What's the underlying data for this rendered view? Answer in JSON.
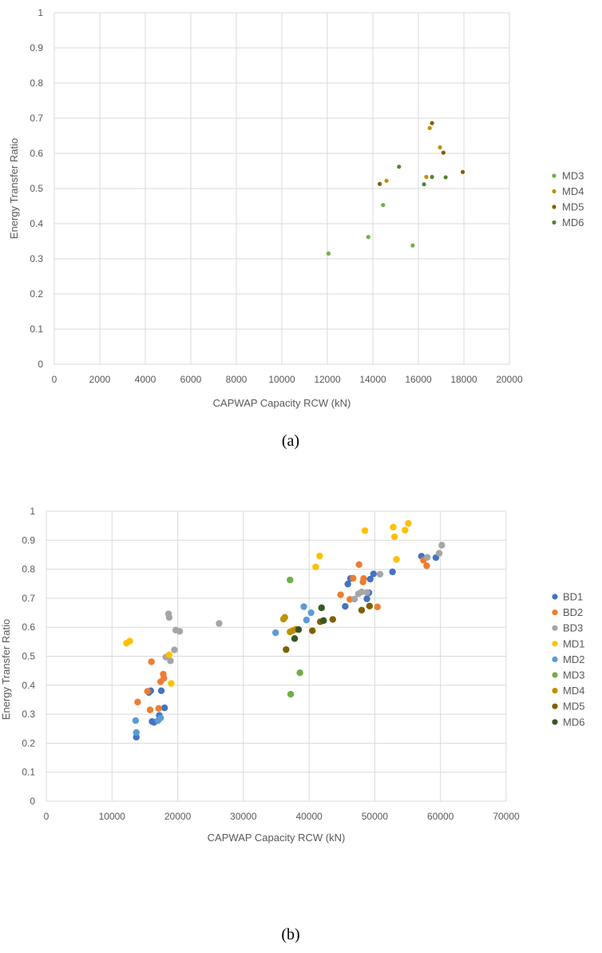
{
  "chart_data": [
    {
      "type": "scatter",
      "caption": "(a)",
      "xlabel": "CAPWAP Capacity RCW (kN)",
      "ylabel": "Energy Transfer Ratio",
      "xlim": [
        0,
        20000
      ],
      "ylim": [
        0,
        1
      ],
      "x_ticks": [
        "0",
        "2000",
        "4000",
        "6000",
        "8000",
        "10000",
        "12000",
        "14000",
        "16000",
        "18000",
        "20000"
      ],
      "y_ticks": [
        "0",
        "0.1",
        "0.2",
        "0.3",
        "0.4",
        "0.5",
        "0.6",
        "0.7",
        "0.8",
        "0.9",
        "1"
      ],
      "grid": true,
      "legend_position": "right",
      "series": [
        {
          "name": "MD3",
          "color": "#70ad47",
          "points": [
            [
              12050,
              0.315
            ],
            [
              13800,
              0.362
            ],
            [
              14450,
              0.453
            ],
            [
              15750,
              0.338
            ]
          ]
        },
        {
          "name": "MD4",
          "color": "#bf9000",
          "points": [
            [
              14600,
              0.522
            ],
            [
              16350,
              0.533
            ],
            [
              16500,
              0.672
            ],
            [
              16950,
              0.617
            ]
          ]
        },
        {
          "name": "MD5",
          "color": "#7f6000",
          "points": [
            [
              14300,
              0.513
            ],
            [
              16600,
              0.686
            ],
            [
              17100,
              0.602
            ],
            [
              17950,
              0.547
            ]
          ]
        },
        {
          "name": "MD6",
          "color": "#548235",
          "points": [
            [
              15150,
              0.562
            ],
            [
              16250,
              0.512
            ],
            [
              16600,
              0.533
            ],
            [
              17200,
              0.532
            ]
          ]
        }
      ]
    },
    {
      "type": "scatter",
      "caption": "(b)",
      "xlabel": "CAPWAP Capacity RCW (kN)",
      "ylabel": "Energy Transfer Ratio",
      "xlim": [
        0,
        70000
      ],
      "ylim": [
        0,
        1
      ],
      "x_ticks": [
        "0",
        "10000",
        "20000",
        "30000",
        "40000",
        "50000",
        "60000",
        "70000"
      ],
      "y_ticks": [
        "0",
        "0.1",
        "0.2",
        "0.3",
        "0.4",
        "0.5",
        "0.6",
        "0.7",
        "0.8",
        "0.9",
        "1"
      ],
      "grid": true,
      "legend_position": "right",
      "series": [
        {
          "name": "BD1",
          "color": "#4472c4",
          "points": [
            [
              13700,
              0.221
            ],
            [
              15600,
              0.375
            ],
            [
              15900,
              0.381
            ],
            [
              16100,
              0.275
            ],
            [
              16400,
              0.272
            ],
            [
              17200,
              0.296
            ],
            [
              17500,
              0.381
            ],
            [
              18000,
              0.322
            ],
            [
              45500,
              0.672
            ],
            [
              45900,
              0.749
            ],
            [
              46300,
              0.768
            ],
            [
              48800,
              0.698
            ],
            [
              49100,
              0.719
            ],
            [
              49300,
              0.766
            ],
            [
              49800,
              0.784
            ],
            [
              52700,
              0.791
            ],
            [
              57100,
              0.845
            ],
            [
              59300,
              0.84
            ]
          ]
        },
        {
          "name": "BD2",
          "color": "#ed7d31",
          "points": [
            [
              13900,
              0.342
            ],
            [
              15400,
              0.379
            ],
            [
              15800,
              0.315
            ],
            [
              16000,
              0.481
            ],
            [
              17100,
              0.32
            ],
            [
              17400,
              0.412
            ],
            [
              17800,
              0.438
            ],
            [
              17900,
              0.424
            ],
            [
              44800,
              0.712
            ],
            [
              46200,
              0.696
            ],
            [
              46700,
              0.769
            ],
            [
              47600,
              0.816
            ],
            [
              48200,
              0.756
            ],
            [
              48300,
              0.768
            ],
            [
              50400,
              0.67
            ],
            [
              57400,
              0.831
            ],
            [
              57900,
              0.812
            ]
          ]
        },
        {
          "name": "BD3",
          "color": "#a5a5a5",
          "points": [
            [
              18200,
              0.497
            ],
            [
              18600,
              0.646
            ],
            [
              18700,
              0.634
            ],
            [
              18900,
              0.484
            ],
            [
              19500,
              0.522
            ],
            [
              19700,
              0.59
            ],
            [
              20300,
              0.586
            ],
            [
              26300,
              0.613
            ],
            [
              46900,
              0.697
            ],
            [
              47500,
              0.715
            ],
            [
              48000,
              0.722
            ],
            [
              48800,
              0.72
            ],
            [
              50800,
              0.783
            ],
            [
              58000,
              0.841
            ],
            [
              59800,
              0.855
            ],
            [
              60200,
              0.883
            ]
          ]
        },
        {
          "name": "MD1",
          "color": "#ffc000",
          "points": [
            [
              12200,
              0.545
            ],
            [
              12700,
              0.552
            ],
            [
              18700,
              0.505
            ],
            [
              19000,
              0.406
            ],
            [
              41000,
              0.808
            ],
            [
              41600,
              0.846
            ],
            [
              48500,
              0.933
            ],
            [
              52800,
              0.945
            ],
            [
              53000,
              0.912
            ],
            [
              53300,
              0.834
            ],
            [
              54600,
              0.935
            ],
            [
              55100,
              0.958
            ]
          ]
        },
        {
          "name": "MD2",
          "color": "#5b9bd5",
          "points": [
            [
              13600,
              0.278
            ],
            [
              13700,
              0.237
            ],
            [
              17000,
              0.278
            ],
            [
              17400,
              0.287
            ],
            [
              34900,
              0.581
            ],
            [
              39200,
              0.671
            ],
            [
              39600,
              0.625
            ],
            [
              40300,
              0.65
            ]
          ]
        },
        {
          "name": "MD3",
          "color": "#70ad47",
          "points": [
            [
              37100,
              0.763
            ],
            [
              37200,
              0.369
            ],
            [
              38600,
              0.443
            ]
          ]
        },
        {
          "name": "MD4",
          "color": "#bf9000",
          "points": [
            [
              36100,
              0.628
            ],
            [
              36300,
              0.634
            ],
            [
              37100,
              0.584
            ],
            [
              37500,
              0.588
            ],
            [
              38000,
              0.593
            ]
          ]
        },
        {
          "name": "MD5",
          "color": "#7f6000",
          "points": [
            [
              36500,
              0.523
            ],
            [
              40500,
              0.588
            ],
            [
              41700,
              0.619
            ],
            [
              43600,
              0.627
            ],
            [
              48000,
              0.659
            ],
            [
              49200,
              0.673
            ]
          ]
        },
        {
          "name": "MD6",
          "color": "#375623",
          "points": [
            [
              37800,
              0.561
            ],
            [
              38400,
              0.592
            ],
            [
              41900,
              0.667
            ],
            [
              42200,
              0.623
            ]
          ]
        }
      ]
    }
  ]
}
